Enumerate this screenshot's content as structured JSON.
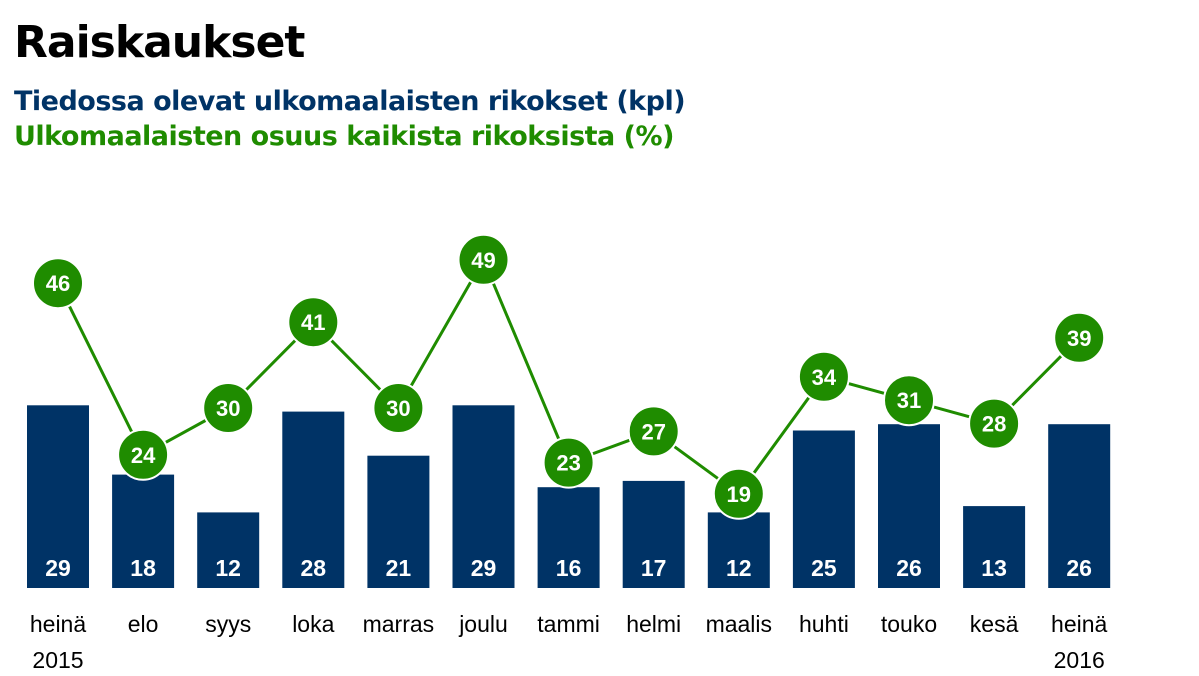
{
  "title": "Raiskaukset",
  "legend": {
    "bars_label": "Tiedossa olevat ulkomaalaisten rikokset (kpl)",
    "line_label": "Ulkomaalaisten osuus kaikista rikoksista (%)"
  },
  "colors": {
    "bars": "#003366",
    "line": "#1f8c00",
    "title": "#000000"
  },
  "chart_data": {
    "type": "bar",
    "title": "Raiskaukset",
    "categories": [
      [
        "heinä",
        "2015"
      ],
      [
        "elo"
      ],
      [
        "syys"
      ],
      [
        "loka"
      ],
      [
        "marras"
      ],
      [
        "joulu"
      ],
      [
        "tammi"
      ],
      [
        "helmi"
      ],
      [
        "maalis"
      ],
      [
        "huhti"
      ],
      [
        "touko"
      ],
      [
        "kesä"
      ],
      [
        "heinä",
        "2016"
      ]
    ],
    "series": [
      {
        "name": "Tiedossa olevat ulkomaalaisten rikokset (kpl)",
        "type": "bar",
        "values": [
          29,
          18,
          12,
          28,
          21,
          29,
          16,
          17,
          12,
          25,
          26,
          13,
          26
        ]
      },
      {
        "name": "Ulkomaalaisten osuus kaikista rikoksista (%)",
        "type": "line",
        "values": [
          46,
          24,
          30,
          41,
          30,
          49,
          23,
          27,
          19,
          34,
          31,
          28,
          39
        ]
      }
    ],
    "xlabel": "",
    "ylabel": "",
    "grid": false,
    "legend": "top-left"
  }
}
